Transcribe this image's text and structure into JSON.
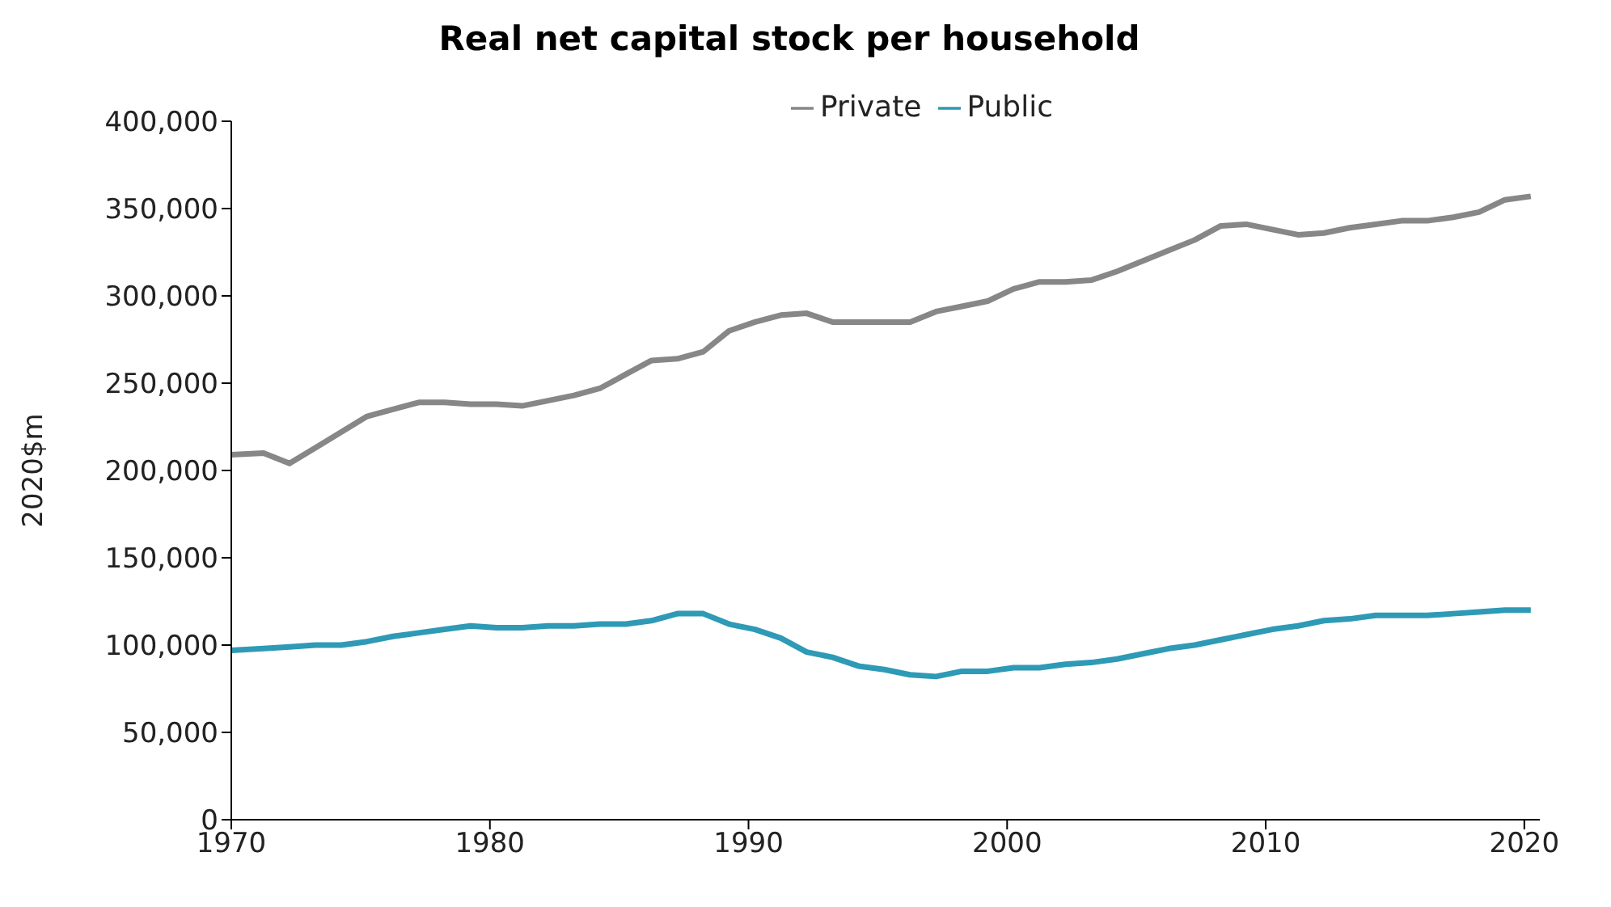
{
  "chart_data": {
    "type": "line",
    "title": "Real net capital stock per household",
    "ylabel": "2020$m",
    "x": [
      1970,
      1971.25,
      1972.25,
      1973.25,
      1974.25,
      1975.25,
      1976.25,
      1977.25,
      1978.25,
      1979.25,
      1980.25,
      1981.25,
      1982.25,
      1983.25,
      1984.25,
      1985.25,
      1986.25,
      1987.25,
      1988.25,
      1989.25,
      1990.25,
      1991.25,
      1992.25,
      1993.25,
      1994.25,
      1995.25,
      1996.25,
      1997.25,
      1998.25,
      1999.25,
      2000.25,
      2001.25,
      2002.25,
      2003.25,
      2004.25,
      2005.25,
      2006.25,
      2007.25,
      2008.25,
      2009.25,
      2010.25,
      2011.25,
      2012.25,
      2013.25,
      2014.25,
      2015.25,
      2016.25,
      2017.25,
      2018.25,
      2019.25,
      2020.25
    ],
    "series": [
      {
        "name": "Private",
        "color": "#878787",
        "values": [
          209000,
          210000,
          204000,
          213000,
          222000,
          231000,
          235000,
          239000,
          239000,
          238000,
          238000,
          237000,
          240000,
          243000,
          247000,
          255000,
          263000,
          264000,
          268000,
          280000,
          285000,
          289000,
          290000,
          285000,
          285000,
          285000,
          285000,
          291000,
          294000,
          297000,
          304000,
          308000,
          308000,
          309000,
          314000,
          320000,
          326000,
          332000,
          340000,
          341000,
          338000,
          335000,
          336000,
          339000,
          341000,
          343000,
          343000,
          345000,
          348000,
          355000,
          357000
        ]
      },
      {
        "name": "Public",
        "color": "#2e9ab6",
        "values": [
          97000,
          98000,
          99000,
          100000,
          100000,
          102000,
          105000,
          107000,
          109000,
          111000,
          110000,
          110000,
          111000,
          111000,
          112000,
          112000,
          114000,
          118000,
          118000,
          112000,
          109000,
          104000,
          96000,
          93000,
          88000,
          86000,
          83000,
          82000,
          85000,
          85000,
          87000,
          87000,
          89000,
          90000,
          92000,
          95000,
          98000,
          100000,
          103000,
          106000,
          109000,
          111000,
          114000,
          115000,
          117000,
          117000,
          117000,
          118000,
          119000,
          120000,
          120000
        ]
      }
    ],
    "xlim": [
      1970,
      2020.6
    ],
    "xticks": [
      1970,
      1980,
      1990,
      2000,
      2010,
      2020
    ],
    "ylim": [
      0,
      400000
    ],
    "yticks": [
      {
        "value": 0,
        "label": "0"
      },
      {
        "value": 50000,
        "label": "50,000"
      },
      {
        "value": 100000,
        "label": "100,000"
      },
      {
        "value": 150000,
        "label": "150,000"
      },
      {
        "value": 200000,
        "label": "200,000"
      },
      {
        "value": 250000,
        "label": "250,000"
      },
      {
        "value": 300000,
        "label": "300,000"
      },
      {
        "value": 350000,
        "label": "350,000"
      },
      {
        "value": 400000,
        "label": "400,000"
      }
    ],
    "grid": false,
    "legend": "top",
    "marker": "none",
    "line_style": "solid"
  }
}
